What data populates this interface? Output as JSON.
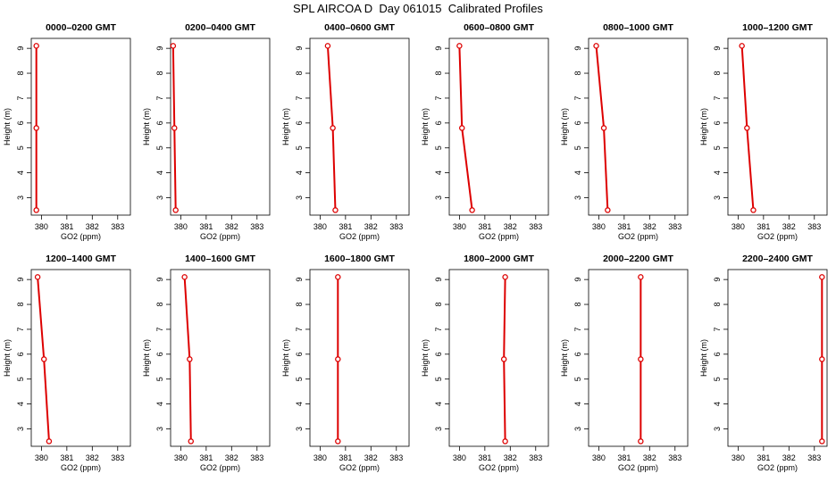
{
  "title": "SPL AIRCOA D  Day 061015  Calibrated Profiles",
  "colors": {
    "line": "#dd0000",
    "axes": "#000000"
  },
  "chart_data": [
    {
      "type": "line",
      "title": "0000–0200 GMT",
      "xlabel": "GO2 (ppm)",
      "ylabel": "Height (m)",
      "xlim": [
        379.6,
        383.5
      ],
      "ylim": [
        2.3,
        9.4
      ],
      "xticks": [
        380,
        381,
        382,
        383
      ],
      "yticks": [
        3,
        4,
        5,
        6,
        7,
        8,
        9
      ],
      "series": [
        {
          "x": [
            379.8,
            379.8,
            379.8
          ],
          "y": [
            2.5,
            5.8,
            9.1
          ]
        }
      ]
    },
    {
      "type": "line",
      "title": "0200–0400 GMT",
      "xlabel": "GO2 (ppm)",
      "ylabel": "Height (m)",
      "xlim": [
        379.6,
        383.5
      ],
      "ylim": [
        2.3,
        9.4
      ],
      "xticks": [
        380,
        381,
        382,
        383
      ],
      "yticks": [
        3,
        4,
        5,
        6,
        7,
        8,
        9
      ],
      "series": [
        {
          "x": [
            379.8,
            379.75,
            379.7
          ],
          "y": [
            2.5,
            5.8,
            9.1
          ]
        }
      ]
    },
    {
      "type": "line",
      "title": "0400–0600 GMT",
      "xlabel": "GO2 (ppm)",
      "ylabel": "Height (m)",
      "xlim": [
        379.6,
        383.5
      ],
      "ylim": [
        2.3,
        9.4
      ],
      "xticks": [
        380,
        381,
        382,
        383
      ],
      "yticks": [
        3,
        4,
        5,
        6,
        7,
        8,
        9
      ],
      "series": [
        {
          "x": [
            380.6,
            380.5,
            380.3
          ],
          "y": [
            2.5,
            5.8,
            9.1
          ]
        }
      ]
    },
    {
      "type": "line",
      "title": "0600–0800 GMT",
      "xlabel": "GO2 (ppm)",
      "ylabel": "Height (m)",
      "xlim": [
        379.6,
        383.5
      ],
      "ylim": [
        2.3,
        9.4
      ],
      "xticks": [
        380,
        381,
        382,
        383
      ],
      "yticks": [
        3,
        4,
        5,
        6,
        7,
        8,
        9
      ],
      "series": [
        {
          "x": [
            380.5,
            380.1,
            380.0
          ],
          "y": [
            2.5,
            5.8,
            9.1
          ]
        }
      ]
    },
    {
      "type": "line",
      "title": "0800–1000 GMT",
      "xlabel": "GO2 (ppm)",
      "ylabel": "Height (m)",
      "xlim": [
        379.6,
        383.5
      ],
      "ylim": [
        2.3,
        9.4
      ],
      "xticks": [
        380,
        381,
        382,
        383
      ],
      "yticks": [
        3,
        4,
        5,
        6,
        7,
        8,
        9
      ],
      "series": [
        {
          "x": [
            380.35,
            380.2,
            379.9
          ],
          "y": [
            2.5,
            5.8,
            9.1
          ]
        }
      ]
    },
    {
      "type": "line",
      "title": "1000–1200 GMT",
      "xlabel": "GO2 (ppm)",
      "ylabel": "Height (m)",
      "xlim": [
        379.6,
        383.5
      ],
      "ylim": [
        2.3,
        9.4
      ],
      "xticks": [
        380,
        381,
        382,
        383
      ],
      "yticks": [
        3,
        4,
        5,
        6,
        7,
        8,
        9
      ],
      "series": [
        {
          "x": [
            380.6,
            380.35,
            380.15
          ],
          "y": [
            2.5,
            5.8,
            9.1
          ]
        }
      ]
    },
    {
      "type": "line",
      "title": "1200–1400 GMT",
      "xlabel": "GO2 (ppm)",
      "ylabel": "Height (m)",
      "xlim": [
        379.6,
        383.5
      ],
      "ylim": [
        2.3,
        9.4
      ],
      "xticks": [
        380,
        381,
        382,
        383
      ],
      "yticks": [
        3,
        4,
        5,
        6,
        7,
        8,
        9
      ],
      "series": [
        {
          "x": [
            380.3,
            380.1,
            379.85
          ],
          "y": [
            2.5,
            5.8,
            9.1
          ]
        }
      ]
    },
    {
      "type": "line",
      "title": "1400–1600 GMT",
      "xlabel": "GO2 (ppm)",
      "ylabel": "Height (m)",
      "xlim": [
        379.6,
        383.5
      ],
      "ylim": [
        2.3,
        9.4
      ],
      "xticks": [
        380,
        381,
        382,
        383
      ],
      "yticks": [
        3,
        4,
        5,
        6,
        7,
        8,
        9
      ],
      "series": [
        {
          "x": [
            380.4,
            380.35,
            380.15
          ],
          "y": [
            2.5,
            5.8,
            9.1
          ]
        }
      ]
    },
    {
      "type": "line",
      "title": "1600–1800 GMT",
      "xlabel": "GO2 (ppm)",
      "ylabel": "Height (m)",
      "xlim": [
        379.6,
        383.5
      ],
      "ylim": [
        2.3,
        9.4
      ],
      "xticks": [
        380,
        381,
        382,
        383
      ],
      "yticks": [
        3,
        4,
        5,
        6,
        7,
        8,
        9
      ],
      "series": [
        {
          "x": [
            380.7,
            380.7,
            380.7
          ],
          "y": [
            2.5,
            5.8,
            9.1
          ]
        }
      ]
    },
    {
      "type": "line",
      "title": "1800–2000 GMT",
      "xlabel": "GO2 (ppm)",
      "ylabel": "Height (m)",
      "xlim": [
        379.6,
        383.5
      ],
      "ylim": [
        2.3,
        9.4
      ],
      "xticks": [
        380,
        381,
        382,
        383
      ],
      "yticks": [
        3,
        4,
        5,
        6,
        7,
        8,
        9
      ],
      "series": [
        {
          "x": [
            381.8,
            381.75,
            381.8
          ],
          "y": [
            2.5,
            5.8,
            9.1
          ]
        }
      ]
    },
    {
      "type": "line",
      "title": "2000–2200 GMT",
      "xlabel": "GO2 (ppm)",
      "ylabel": "Height (m)",
      "xlim": [
        379.6,
        383.5
      ],
      "ylim": [
        2.3,
        9.4
      ],
      "xticks": [
        380,
        381,
        382,
        383
      ],
      "yticks": [
        3,
        4,
        5,
        6,
        7,
        8,
        9
      ],
      "series": [
        {
          "x": [
            381.65,
            381.65,
            381.65
          ],
          "y": [
            2.5,
            5.8,
            9.1
          ]
        }
      ]
    },
    {
      "type": "line",
      "title": "2200–2400 GMT",
      "xlabel": "GO2 (ppm)",
      "ylabel": "Height (m)",
      "xlim": [
        379.6,
        383.5
      ],
      "ylim": [
        2.3,
        9.4
      ],
      "xticks": [
        380,
        381,
        382,
        383
      ],
      "yticks": [
        3,
        4,
        5,
        6,
        7,
        8,
        9
      ],
      "series": [
        {
          "x": [
            383.3,
            383.3,
            383.3
          ],
          "y": [
            2.5,
            5.8,
            9.1
          ]
        }
      ]
    }
  ]
}
